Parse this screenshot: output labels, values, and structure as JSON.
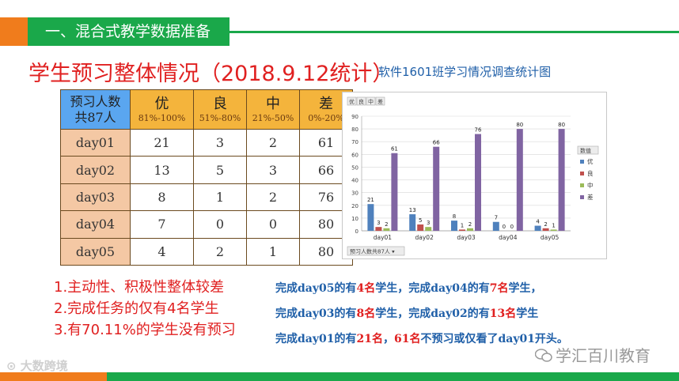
{
  "header": {
    "section_title": "一、混合式教学数据准备"
  },
  "title": "学生预习整体情况（2018.9.12统计）",
  "chart_caption": "软件1601班学习情况调查统计图",
  "table": {
    "head": {
      "first_line1": "预习人数",
      "first_line2": "共87人",
      "cols": [
        {
          "grade": "优",
          "range": "81%-100%"
        },
        {
          "grade": "良",
          "range": "51%-80%"
        },
        {
          "grade": "中",
          "range": "21%-50%"
        },
        {
          "grade": "差",
          "range": "0%-20%"
        }
      ]
    },
    "rows": [
      {
        "day": "day01",
        "values": [
          "21",
          "3",
          "2",
          "61"
        ]
      },
      {
        "day": "day02",
        "values": [
          "13",
          "5",
          "3",
          "66"
        ]
      },
      {
        "day": "day03",
        "values": [
          "8",
          "1",
          "2",
          "76"
        ]
      },
      {
        "day": "day04",
        "values": [
          "7",
          "0",
          "0",
          "80"
        ]
      },
      {
        "day": "day05",
        "values": [
          "4",
          "2",
          "1",
          "80"
        ]
      }
    ]
  },
  "chart_data": {
    "type": "bar",
    "categories": [
      "day01",
      "day02",
      "day03",
      "day04",
      "day05"
    ],
    "series": [
      {
        "name": "优",
        "color": "#4f81bd",
        "values": [
          21,
          13,
          8,
          7,
          4
        ]
      },
      {
        "name": "良",
        "color": "#c0504d",
        "values": [
          3,
          5,
          1,
          0,
          2
        ]
      },
      {
        "name": "中",
        "color": "#9bbb59",
        "values": [
          2,
          3,
          2,
          0,
          1
        ]
      },
      {
        "name": "差",
        "color": "#8064a2",
        "values": [
          61,
          66,
          76,
          80,
          80
        ]
      }
    ],
    "ylim": [
      0,
      90
    ],
    "yticks": [
      0,
      10,
      20,
      30,
      40,
      50,
      60,
      70,
      80,
      90
    ],
    "legend_title": "数值",
    "legend_position": "right",
    "filter_buttons": [
      "优",
      "良",
      "中",
      "差"
    ],
    "axis_button": "预习人数共87人"
  },
  "notes": [
    "1.主动性、积极性整体较差",
    "2.完成任务的仅有4名学生",
    "3.有70.11%的学生没有预习"
  ],
  "summary": {
    "line1": {
      "a": "完成day05的有",
      "b": "4名",
      "c": "学生，完成day04的有",
      "d": "7名",
      "e": "学生，"
    },
    "line2": {
      "a": "完成day03的有",
      "b": "8名",
      "c": "学生，完成day02的有",
      "d": "13名",
      "e": "学生"
    },
    "line3": {
      "a": "完成day01的有",
      "b": "21名",
      "c": "，",
      "d": "61名",
      "e": "不预习或仅看了day01开头。"
    }
  },
  "watermark_left": "大数跨境",
  "watermark_right": "学汇百川教育",
  "colors": {
    "accent_green": "#1aa84a",
    "accent_orange": "#f07c1c",
    "title_red": "#e02020",
    "text_blue": "#1f5fa8"
  }
}
